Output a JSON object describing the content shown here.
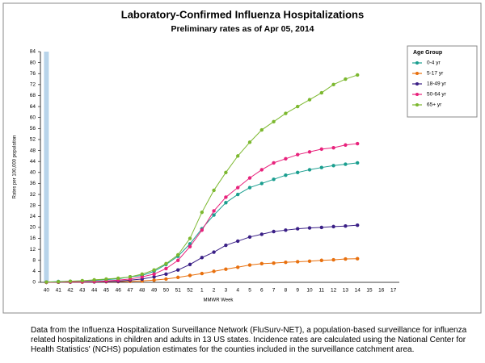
{
  "chart_data": {
    "type": "line",
    "title": "Laboratory-Confirmed Influenza Hospitalizations",
    "subtitle": "Preliminary rates as of Apr 05, 2014",
    "x_label": "MMWR Week",
    "y_label": "Rates per 100,000 population",
    "legend_title": "Age Group",
    "legend": "right",
    "categories": [
      "40",
      "41",
      "42",
      "43",
      "44",
      "45",
      "46",
      "47",
      "48",
      "49",
      "50",
      "51",
      "52",
      "1",
      "2",
      "3",
      "4",
      "5",
      "6",
      "7",
      "8",
      "9",
      "10",
      "11",
      "12",
      "13",
      "14",
      "15",
      "16",
      "17"
    ],
    "ylim": [
      0,
      84
    ],
    "yticks": [
      0,
      4,
      8,
      12,
      16,
      20,
      24,
      28,
      32,
      36,
      40,
      44,
      48,
      52,
      56,
      60,
      64,
      68,
      72,
      76,
      80,
      84
    ],
    "series": [
      {
        "name": "0-4 yr",
        "color": "#1a9e8f",
        "values": [
          0.1,
          0.3,
          0.4,
          0.5,
          0.7,
          1,
          1.3,
          2,
          2.5,
          4,
          6.5,
          9.5,
          14,
          19.5,
          24.5,
          29,
          32,
          34.5,
          36,
          37.5,
          39,
          40,
          41,
          41.8,
          42.5,
          43,
          43.5,
          null,
          null,
          null
        ]
      },
      {
        "name": "5-17 yr",
        "color": "#e8700e",
        "values": [
          0,
          0.05,
          0.1,
          0.1,
          0.15,
          0.2,
          0.25,
          0.35,
          0.5,
          0.8,
          1.2,
          1.8,
          2.5,
          3.2,
          4,
          4.8,
          5.5,
          6.3,
          6.8,
          7,
          7.3,
          7.5,
          7.7,
          8,
          8.2,
          8.5,
          8.6,
          null,
          null,
          null
        ]
      },
      {
        "name": "18-49 yr",
        "color": "#3a1f86",
        "values": [
          0,
          0.05,
          0.1,
          0.15,
          0.2,
          0.3,
          0.4,
          0.8,
          1.2,
          2,
          3,
          4.5,
          6.5,
          9,
          11,
          13.5,
          15,
          16.5,
          17.5,
          18.5,
          19,
          19.5,
          19.8,
          20,
          20.3,
          20.5,
          20.8,
          null,
          null,
          null
        ]
      },
      {
        "name": "50-64 yr",
        "color": "#e8227c",
        "values": [
          0,
          0.1,
          0.15,
          0.2,
          0.3,
          0.5,
          0.8,
          1.2,
          2,
          3,
          5,
          8,
          13,
          19,
          26,
          31,
          34.5,
          38,
          41,
          43.5,
          45,
          46.5,
          47.5,
          48.5,
          49,
          50,
          50.5,
          null,
          null,
          null
        ]
      },
      {
        "name": "65+ yr",
        "color": "#7cb82f",
        "values": [
          0.1,
          0.2,
          0.4,
          0.6,
          0.9,
          1.2,
          1.5,
          2,
          3,
          4.5,
          6.8,
          10,
          16,
          25.5,
          33.5,
          40,
          46,
          51,
          55.5,
          58.5,
          61.5,
          64,
          66.5,
          69,
          72,
          74,
          75.5,
          null,
          null,
          null
        ]
      }
    ]
  },
  "caption": {
    "lines": [
      "Data from the Influenza  Hospitalization Surveillance Network (FluSurv-NET),  a population-based surveillance  for influenza",
      "related hospitalizations in children and adults in 13 US states. Incidence rates are calculated using the National Center for",
      "Health Statistics' (NCHS) population estimates for the counties included in the surveillance catchment area."
    ]
  }
}
